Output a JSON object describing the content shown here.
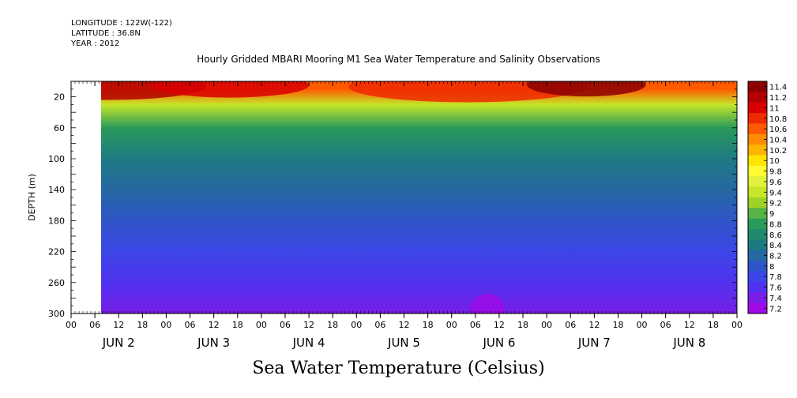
{
  "header": {
    "longitude": "LONGITUDE : 122W(-122)",
    "latitude": "LATITUDE : 36.8N",
    "year": "YEAR : 2012",
    "title": "Hourly Gridded MBARI Mooring M1 Sea Water Temperature and Salinity Observations",
    "variable_title": "Sea Water Temperature (Celsius)"
  },
  "chart_data": {
    "type": "heatmap",
    "title": "Hourly Gridded MBARI Mooring M1 Sea Water Temperature and Salinity Observations",
    "variable": "Sea Water Temperature (Celsius)",
    "ylabel": "DEPTH (m)",
    "xlabel": "",
    "y_inverted": true,
    "ylim": [
      300,
      0
    ],
    "y_ticks": [
      20,
      60,
      100,
      140,
      180,
      220,
      260,
      300
    ],
    "x_hour_ticks": [
      "00",
      "06",
      "12",
      "18",
      "00",
      "06",
      "12",
      "18",
      "00",
      "06",
      "12",
      "18",
      "00",
      "06",
      "12",
      "18",
      "00",
      "06",
      "12",
      "18",
      "00",
      "06",
      "12",
      "18",
      "00",
      "06",
      "12",
      "18",
      "00"
    ],
    "x_day_labels": [
      "JUN  2",
      "JUN  3",
      "JUN  4",
      "JUN  5",
      "JUN  6",
      "JUN  7",
      "JUN  8"
    ],
    "data_start_hour": 7,
    "colorbar_levels": [
      11.4,
      11.2,
      11,
      10.8,
      10.6,
      10.4,
      10.2,
      10,
      9.8,
      9.6,
      9.4,
      9.2,
      9,
      8.8,
      8.6,
      8.4,
      8.2,
      8,
      7.8,
      7.6,
      7.4,
      7.2
    ],
    "colorbar_colors": [
      "#8b0000",
      "#b40000",
      "#d80000",
      "#ee2a00",
      "#ff5a00",
      "#ff8c00",
      "#ffb400",
      "#ffe400",
      "#fffa32",
      "#e2f03c",
      "#c6e628",
      "#9ed228",
      "#55b446",
      "#2a9a5a",
      "#1f8a6c",
      "#1e7a82",
      "#2568a2",
      "#2f55c8",
      "#3c46e6",
      "#5032f0",
      "#781ee6",
      "#a00ae6"
    ],
    "depth_profile_mean_c": [
      {
        "depth": 10,
        "temp": 10.6
      },
      {
        "depth": 30,
        "temp": 9.4
      },
      {
        "depth": 60,
        "temp": 8.9
      },
      {
        "depth": 100,
        "temp": 8.5
      },
      {
        "depth": 140,
        "temp": 8.3
      },
      {
        "depth": 180,
        "temp": 8.1
      },
      {
        "depth": 220,
        "temp": 7.9
      },
      {
        "depth": 260,
        "temp": 7.7
      },
      {
        "depth": 300,
        "temp": 7.5
      }
    ],
    "surface_max_c": 11.4,
    "bottom_min_c": 7.2
  }
}
